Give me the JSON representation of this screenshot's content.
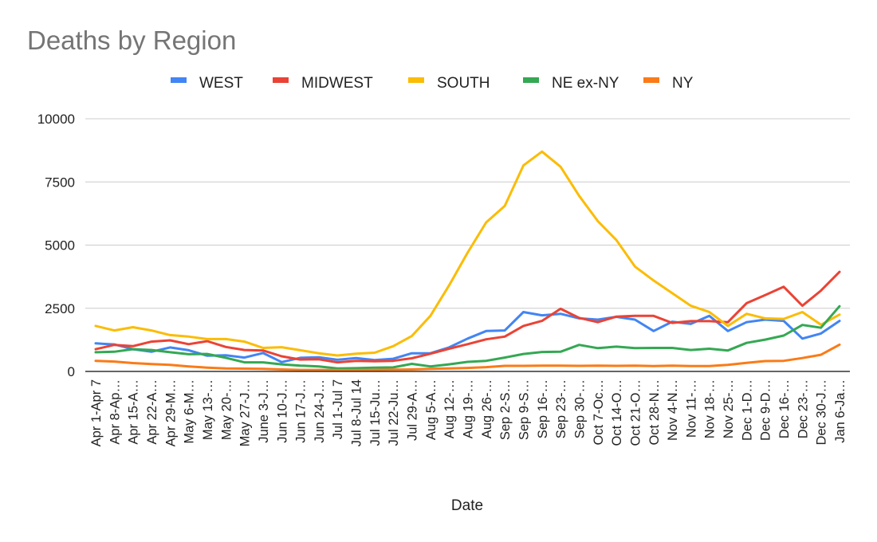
{
  "chart_data": {
    "type": "line",
    "title": "Deaths by Region",
    "xlabel": "Date",
    "ylabel": "",
    "ylim": [
      0,
      10000
    ],
    "yticks": [
      0,
      2500,
      5000,
      7500,
      10000
    ],
    "grid": true,
    "legend_position": "top",
    "categories": [
      "Apr 1-Apr 7",
      "Apr 8-Ap…",
      "Apr 15-A…",
      "Apr 22-A…",
      "Apr 29-M…",
      "May 6-M…",
      "May 13-…",
      "May 20-…",
      "May 27-J…",
      "June 3-J…",
      "Jun 10-J…",
      "Jun 17-J…",
      "Jun 24-J…",
      "Jul 1-Jul 7",
      "Jul 8-Jul 14",
      "Jul 15-Ju…",
      "Jul 22-Ju…",
      "Jul 29-A…",
      "Aug 5-A…",
      "Aug 12-…",
      "Aug 19-…",
      "Aug 26-…",
      "Sep 2-S…",
      "Sep 9-S…",
      "Sep 16-…",
      "Sep 23-…",
      "Sep 30-…",
      "Oct 7-Oc…",
      "Oct 14-O…",
      "Oct 21-O…",
      "Oct 28-N…",
      "Nov 4-N…",
      "Nov 11-…",
      "Nov 18-…",
      "Nov 25-…",
      "Dec 1-D…",
      "Dec 9-D…",
      "Dec 16-…",
      "Dec 23-…",
      "Dec 30-J…",
      "Jan 6-Ja…"
    ],
    "series": [
      {
        "name": "WEST",
        "color": "#4285f4",
        "values": [
          1110,
          1070,
          880,
          780,
          950,
          840,
          620,
          640,
          550,
          730,
          370,
          540,
          560,
          460,
          530,
          450,
          500,
          720,
          720,
          950,
          1300,
          1600,
          1620,
          2350,
          2220,
          2280,
          2100,
          2050,
          2160,
          2050,
          1600,
          1970,
          1880,
          2200,
          1600,
          1950,
          2050,
          2000,
          1300,
          1500,
          2000
        ]
      },
      {
        "name": "MIDWEST",
        "color": "#ea4335",
        "values": [
          880,
          1050,
          1000,
          1180,
          1230,
          1080,
          1200,
          970,
          850,
          830,
          600,
          470,
          480,
          360,
          420,
          400,
          420,
          520,
          700,
          900,
          1080,
          1270,
          1380,
          1800,
          2000,
          2480,
          2120,
          1950,
          2170,
          2200,
          2200,
          1920,
          1990,
          1990,
          1950,
          2700,
          3020,
          3350,
          2600,
          3200,
          3940
        ]
      },
      {
        "name": "SOUTH",
        "color": "#fbbc04",
        "values": [
          1800,
          1620,
          1750,
          1620,
          1440,
          1380,
          1280,
          1280,
          1180,
          930,
          960,
          840,
          720,
          630,
          700,
          740,
          1000,
          1400,
          2200,
          3400,
          4700,
          5900,
          6550,
          8150,
          8700,
          8100,
          6950,
          5950,
          5200,
          4150,
          3600,
          3100,
          2600,
          2350,
          1800,
          2280,
          2100,
          2080,
          2350,
          1850,
          2250
        ]
      },
      {
        "name": "NE ex-NY",
        "color": "#34a853",
        "values": [
          760,
          780,
          880,
          850,
          760,
          680,
          690,
          540,
          360,
          360,
          280,
          230,
          200,
          120,
          130,
          150,
          160,
          300,
          200,
          280,
          380,
          420,
          550,
          690,
          770,
          780,
          1050,
          920,
          980,
          920,
          930,
          930,
          850,
          900,
          830,
          1130,
          1260,
          1420,
          1840,
          1730,
          2580
        ]
      },
      {
        "name": "NY",
        "color": "#fa7b17",
        "values": [
          420,
          390,
          330,
          290,
          260,
          200,
          150,
          120,
          110,
          100,
          80,
          60,
          60,
          50,
          50,
          60,
          70,
          80,
          100,
          120,
          140,
          170,
          220,
          220,
          230,
          230,
          220,
          230,
          220,
          230,
          210,
          230,
          210,
          210,
          260,
          340,
          410,
          420,
          530,
          660,
          1060
        ]
      }
    ]
  }
}
